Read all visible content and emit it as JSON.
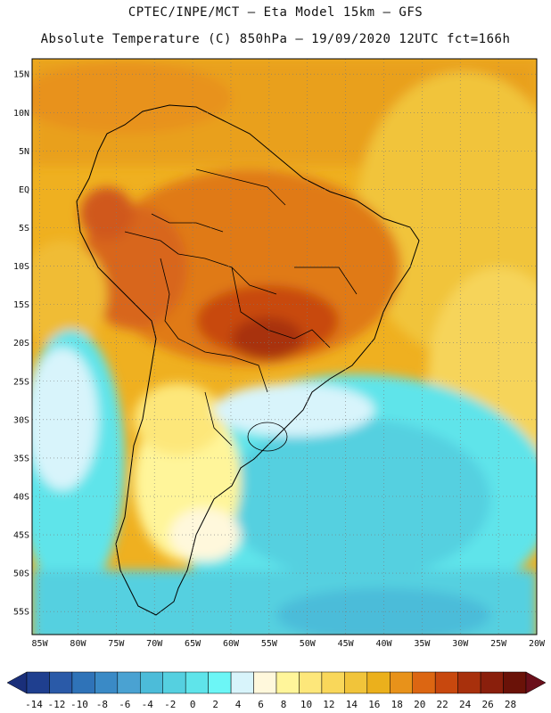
{
  "header": {
    "line1": "CPTEC/INPE/MCT  –  Eta Model 15km  – GFS",
    "line2": "Absolute Temperature (C) 850hPa – 19/09/2020 12UTC fct=166h"
  },
  "map": {
    "lat_labels": [
      "15N",
      "10N",
      "5N",
      "EQ",
      "5S",
      "10S",
      "15S",
      "20S",
      "25S",
      "30S",
      "35S",
      "40S",
      "45S",
      "50S",
      "55S"
    ],
    "lon_labels": [
      "85W",
      "80W",
      "75W",
      "70W",
      "65W",
      "60W",
      "55W",
      "50W",
      "45W",
      "40W",
      "35W",
      "30W",
      "25W",
      "20W"
    ],
    "lat_range": [
      17,
      -58
    ],
    "lon_range": [
      -86,
      -20
    ],
    "gridlines": "dotted"
  },
  "colorbar": {
    "labels": [
      "-14",
      "-12",
      "-10",
      "-8",
      "-6",
      "-4",
      "-2",
      "0",
      "2",
      "4",
      "6",
      "8",
      "10",
      "12",
      "14",
      "16",
      "18",
      "20",
      "22",
      "24",
      "26",
      "28"
    ],
    "colors": [
      "#1f3f8f",
      "#2a5aa8",
      "#2f73b8",
      "#3a8ac6",
      "#4aa2d2",
      "#4cbcd9",
      "#55d0e0",
      "#5fe4ea",
      "#6cf6f6",
      "#d8f4fb",
      "#fff8dc",
      "#fff59a",
      "#fde77a",
      "#f9d75a",
      "#f1c43a",
      "#ebb01c",
      "#e8921a",
      "#dc6612",
      "#c8480e",
      "#a8300c",
      "#8a1f0c",
      "#6a1208"
    ]
  }
}
